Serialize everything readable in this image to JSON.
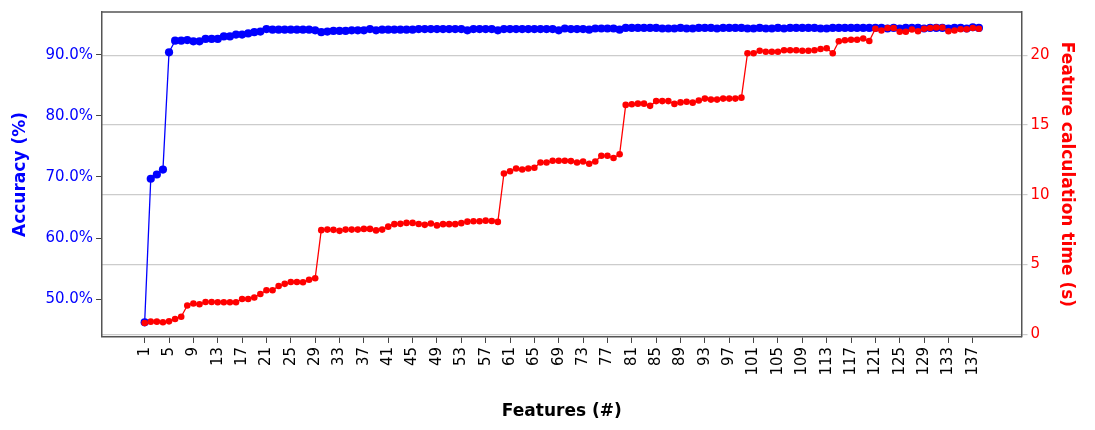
{
  "chart_data": {
    "type": "line",
    "xlabel": "Features (#)",
    "ylabel": "Accuracy (%)",
    "y2label": "Feature calculation time (s)",
    "x": [
      1,
      2,
      3,
      4,
      5,
      6,
      7,
      8,
      9,
      10,
      11,
      12,
      13,
      14,
      15,
      16,
      17,
      18,
      19,
      20,
      21,
      22,
      23,
      24,
      25,
      26,
      27,
      28,
      29,
      30,
      31,
      32,
      33,
      34,
      35,
      36,
      37,
      38,
      39,
      40,
      41,
      42,
      43,
      44,
      45,
      46,
      47,
      48,
      49,
      50,
      51,
      52,
      53,
      54,
      55,
      56,
      57,
      58,
      59,
      60,
      61,
      62,
      63,
      64,
      65,
      66,
      67,
      68,
      69,
      70,
      71,
      72,
      73,
      74,
      75,
      76,
      77,
      78,
      79,
      80,
      81,
      82,
      83,
      84,
      85,
      86,
      87,
      88,
      89,
      90,
      91,
      92,
      93,
      94,
      95,
      96,
      97,
      98,
      99,
      100,
      101,
      102,
      103,
      104,
      105,
      106,
      107,
      108,
      109,
      110,
      111,
      112,
      113,
      114,
      115,
      116,
      117,
      118,
      119,
      120,
      121,
      122,
      123,
      124,
      125,
      126,
      127,
      128,
      129,
      130,
      131,
      132,
      133,
      134,
      135,
      136,
      137,
      138
    ],
    "xlim": [
      -6,
      145
    ],
    "xticks": [
      1,
      5,
      9,
      13,
      17,
      21,
      25,
      29,
      33,
      37,
      41,
      45,
      49,
      53,
      57,
      61,
      65,
      69,
      73,
      77,
      81,
      85,
      89,
      93,
      97,
      101,
      105,
      109,
      113,
      117,
      121,
      125,
      129,
      133,
      137
    ],
    "ylim": [
      43.8,
      97
    ],
    "yticks": [
      {
        "value": 50,
        "label": "50.0%"
      },
      {
        "value": 60,
        "label": "60.0%"
      },
      {
        "value": 70,
        "label": "70.0%"
      },
      {
        "value": 80,
        "label": "80.0%"
      },
      {
        "value": 90,
        "label": "90.0%"
      }
    ],
    "y2lim": [
      -0.2,
      23.1
    ],
    "y2ticks": [
      0,
      5,
      10,
      15,
      20
    ],
    "grid": "y",
    "marker": "circle",
    "line_style": "solid",
    "series": [
      {
        "color": "#0000ff",
        "axis": "y",
        "values": [
          46.2,
          69.7,
          70.4,
          71.2,
          90.4,
          92.3,
          92.3,
          92.4,
          92.2,
          92.2,
          92.6,
          92.6,
          92.6,
          93.0,
          93.0,
          93.3,
          93.3,
          93.5,
          93.7,
          93.8,
          94.2,
          94.1,
          94.1,
          94.1,
          94.1,
          94.1,
          94.1,
          94.1,
          94.0,
          93.7,
          93.8,
          93.9,
          93.9,
          93.9,
          94.0,
          94.0,
          94.0,
          94.2,
          94.0,
          94.1,
          94.1,
          94.1,
          94.1,
          94.1,
          94.1,
          94.2,
          94.2,
          94.2,
          94.2,
          94.2,
          94.2,
          94.2,
          94.2,
          94.0,
          94.2,
          94.2,
          94.2,
          94.2,
          94.0,
          94.2,
          94.2,
          94.2,
          94.2,
          94.2,
          94.2,
          94.2,
          94.2,
          94.2,
          94.0,
          94.3,
          94.2,
          94.2,
          94.2,
          94.1,
          94.3,
          94.3,
          94.3,
          94.3,
          94.1,
          94.4,
          94.4,
          94.4,
          94.4,
          94.4,
          94.4,
          94.3,
          94.3,
          94.3,
          94.4,
          94.3,
          94.3,
          94.4,
          94.4,
          94.4,
          94.3,
          94.4,
          94.4,
          94.4,
          94.4,
          94.3,
          94.3,
          94.4,
          94.3,
          94.3,
          94.4,
          94.3,
          94.4,
          94.4,
          94.4,
          94.4,
          94.4,
          94.3,
          94.3,
          94.4,
          94.4,
          94.4,
          94.4,
          94.4,
          94.4,
          94.4,
          94.4,
          94.4,
          94.3,
          94.4,
          94.3,
          94.4,
          94.4,
          94.4,
          94.3,
          94.4,
          94.4,
          94.4,
          94.3,
          94.4,
          94.4,
          94.3,
          94.5,
          94.4
        ]
      },
      {
        "color": "#ff0000",
        "axis": "y2",
        "values": [
          0.8,
          0.9,
          0.9,
          0.86,
          0.92,
          1.09,
          1.25,
          2.06,
          2.2,
          2.15,
          2.31,
          2.31,
          2.29,
          2.29,
          2.29,
          2.29,
          2.52,
          2.52,
          2.63,
          2.88,
          3.15,
          3.15,
          3.45,
          3.61,
          3.74,
          3.74,
          3.72,
          3.9,
          4.01,
          7.46,
          7.5,
          7.48,
          7.41,
          7.5,
          7.5,
          7.5,
          7.55,
          7.55,
          7.44,
          7.5,
          7.71,
          7.89,
          7.91,
          7.98,
          7.98,
          7.9,
          7.84,
          7.94,
          7.8,
          7.89,
          7.89,
          7.89,
          7.96,
          8.07,
          8.1,
          8.1,
          8.14,
          8.12,
          8.05,
          11.52,
          11.68,
          11.88,
          11.81,
          11.88,
          11.93,
          12.31,
          12.31,
          12.43,
          12.43,
          12.43,
          12.41,
          12.31,
          12.38,
          12.22,
          12.38,
          12.79,
          12.79,
          12.63,
          12.9,
          16.44,
          16.49,
          16.53,
          16.53,
          16.37,
          16.71,
          16.71,
          16.71,
          16.51,
          16.62,
          16.67,
          16.6,
          16.76,
          16.89,
          16.82,
          16.82,
          16.89,
          16.89,
          16.89,
          16.96,
          20.14,
          20.14,
          20.32,
          20.25,
          20.25,
          20.25,
          20.36,
          20.36,
          20.36,
          20.32,
          20.32,
          20.36,
          20.45,
          20.5,
          20.14,
          21.0,
          21.07,
          21.11,
          21.11,
          21.2,
          21.02,
          21.9,
          21.77,
          21.95,
          21.95,
          21.68,
          21.68,
          21.84,
          21.72,
          21.9,
          21.95,
          21.99,
          21.99,
          21.72,
          21.77,
          21.86,
          21.86,
          21.95,
          21.9
        ]
      }
    ]
  }
}
